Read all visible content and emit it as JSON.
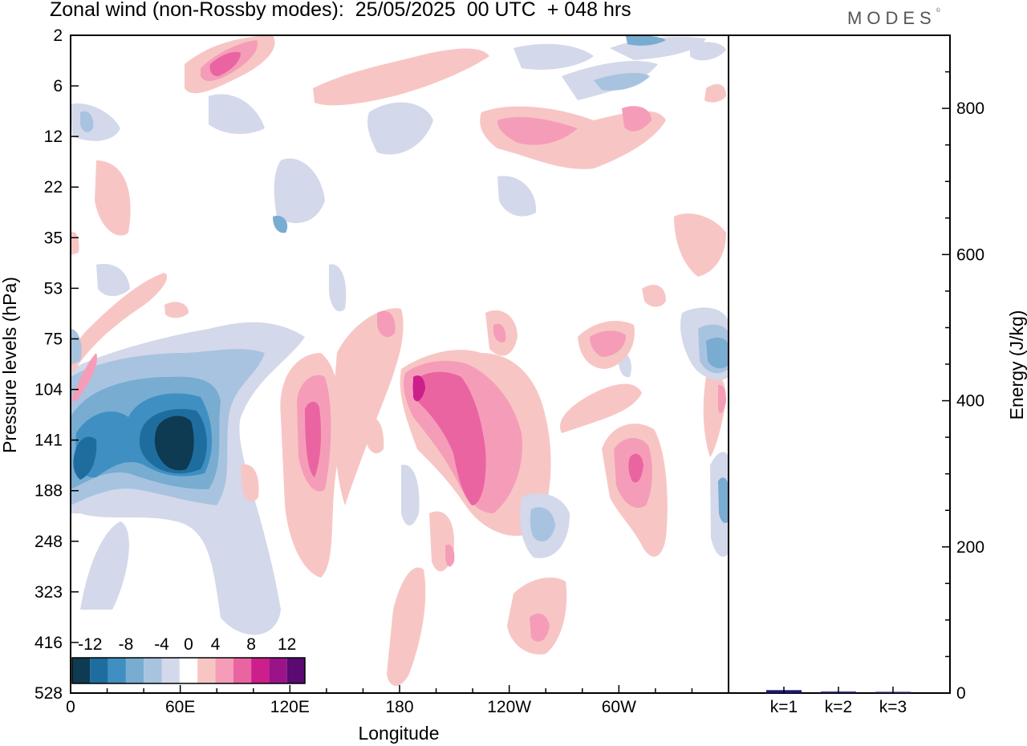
{
  "header": {
    "title": "Zonal wind (non-Rossby modes):  25/05/2025  00 UTC  + 048 hrs",
    "logo": "MODES",
    "logo_mark": "©"
  },
  "chart_data": [
    {
      "type": "heatmap",
      "xlabel": "Longitude",
      "ylabel": "Pressure levels (hPa)",
      "x_ticks": [
        "0",
        "60E",
        "120E",
        "180",
        "120W",
        "60W"
      ],
      "y_ticks": [
        "2",
        "6",
        "12",
        "22",
        "35",
        "53",
        "75",
        "104",
        "141",
        "188",
        "248",
        "323",
        "416",
        "528"
      ],
      "colorbar": {
        "labels": [
          "-12",
          "-8",
          "-4",
          "0",
          "4",
          "8",
          "12"
        ],
        "levels": [
          -14,
          -12,
          -10,
          -8,
          -6,
          -4,
          -2,
          2,
          4,
          6,
          8,
          10,
          12,
          14
        ],
        "colors": [
          "#0e3a52",
          "#1e6d9e",
          "#3f8fc2",
          "#78acd1",
          "#a8c3e0",
          "#d3d8ea",
          "#ffffff",
          "#f7c6c4",
          "#f59db8",
          "#ea64a2",
          "#cc1f8c",
          "#9b1388",
          "#5a0a70"
        ]
      },
      "features": [
        {
          "region": "negative",
          "lon": 58,
          "pressure": 141,
          "value": -14
        },
        {
          "region": "negative",
          "lon": 12,
          "pressure": 160,
          "value": -8
        },
        {
          "region": "positive",
          "lon": 126,
          "pressure": 141,
          "value": 8
        },
        {
          "region": "positive",
          "lon": 220,
          "pressure": 141,
          "value": 8
        },
        {
          "region": "positive",
          "lon": 308,
          "pressure": 160,
          "value": 8
        },
        {
          "region": "negative",
          "lon": 355,
          "pressure": 104,
          "value": -8
        },
        {
          "region": "positive",
          "lon": 78,
          "pressure": 6,
          "value": 8
        },
        {
          "region": "positive",
          "lon": 255,
          "pressure": 12,
          "value": 6
        },
        {
          "region": "positive",
          "lon": 258,
          "pressure": 380,
          "value": 6
        },
        {
          "region": "negative",
          "lon": 262,
          "pressure": 248,
          "value": -6
        }
      ]
    },
    {
      "type": "bar",
      "categories": [
        "k=1",
        "k=2",
        "k=3"
      ],
      "values": [
        4,
        2,
        1
      ],
      "ylabel": "Energy (J/kg)",
      "y_ticks": [
        "0",
        "200",
        "400",
        "600",
        "800"
      ],
      "ylim": [
        0,
        900
      ],
      "bar_color": "#1a1a6e"
    }
  ]
}
